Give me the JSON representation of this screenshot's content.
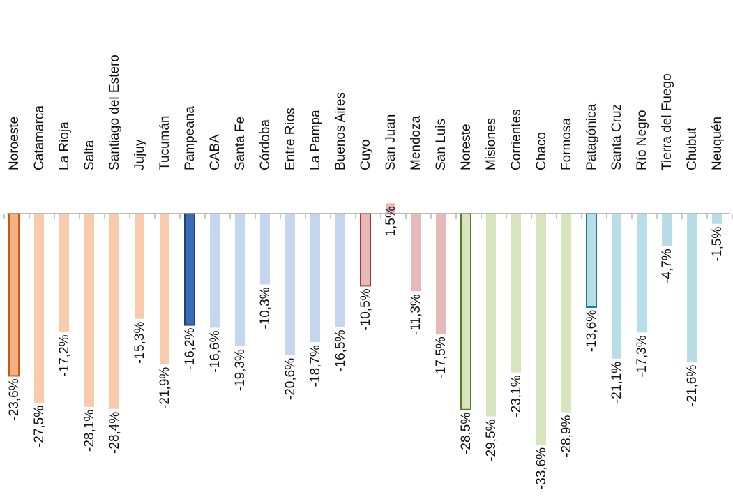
{
  "chart_data": {
    "type": "bar",
    "orientation": "vertical-rotated-labels",
    "title": "",
    "xlabel": "",
    "ylabel": "",
    "ylim": [
      -34,
      2
    ],
    "grid": false,
    "legend": "none",
    "categories": [
      "Noroeste",
      "Catamarca",
      "La Rioja",
      "Salta",
      "Santiago del Estero",
      "Jujuy",
      "Tucumán",
      "Pampeana",
      "CABA",
      "Santa Fe",
      "Córdoba",
      "Entre Ríos",
      "La Pampa",
      "Buenos Aires",
      "Cuyo",
      "San Juan",
      "Mendoza",
      "San Luis",
      "Noreste",
      "Misiones",
      "Corrientes",
      "Chaco",
      "Formosa",
      "Patagónica",
      "Santa Cruz",
      "Río Negro",
      "Tierra del Fuego",
      "Chubut",
      "Neuquén"
    ],
    "values": [
      -23.6,
      -27.5,
      -17.2,
      -28.1,
      -28.4,
      -15.3,
      -21.9,
      -16.2,
      -16.6,
      -19.3,
      -10.3,
      -20.6,
      -18.7,
      -16.5,
      -10.5,
      1.5,
      -11.3,
      -17.5,
      -28.5,
      -29.5,
      -23.1,
      -33.6,
      -28.9,
      -13.6,
      -21.1,
      -17.3,
      -4.7,
      -21.6,
      -1.5
    ],
    "value_labels": [
      "-23,6%",
      "-27,5%",
      "-17,2%",
      "-28,1%",
      "-28,4%",
      "-15,3%",
      "-21,9%",
      "-16,2%",
      "-16,6%",
      "-19,3%",
      "-10,3%",
      "-20,6%",
      "-18,7%",
      "-16,5%",
      "-10,5%",
      "1,5%",
      "-11,3%",
      "-17,5%",
      "-28,5%",
      "-29,5%",
      "-23,1%",
      "-33,6%",
      "-28,9%",
      "-13,6%",
      "-21,1%",
      "-17,3%",
      "-4,7%",
      "-21,6%",
      "-1,5%"
    ],
    "regions": [
      {
        "name": "Noroeste",
        "color": "#f4b183",
        "light": "#f8cbad"
      },
      {
        "name": "Pampeana",
        "color": "#2e5fa8",
        "light": "#c5d6f0"
      },
      {
        "name": "Cuyo",
        "color": "#c0504d",
        "light": "#e6b9b8"
      },
      {
        "name": "Noreste",
        "color": "#9bbb59",
        "light": "#d7e4bd"
      },
      {
        "name": "Patagónica",
        "color": "#4bacc6",
        "light": "#b7dee8"
      }
    ],
    "bar_region": [
      0,
      0,
      0,
      0,
      0,
      0,
      0,
      1,
      1,
      1,
      1,
      1,
      1,
      1,
      2,
      2,
      2,
      2,
      3,
      3,
      3,
      3,
      3,
      4,
      4,
      4,
      4,
      4,
      4
    ],
    "bar_is_total": [
      true,
      false,
      false,
      false,
      false,
      false,
      false,
      true,
      false,
      false,
      false,
      false,
      false,
      false,
      true,
      false,
      false,
      false,
      true,
      false,
      false,
      false,
      false,
      true,
      false,
      false,
      false,
      false,
      false
    ],
    "colors": {
      "noroeste_total_fill": "#f4b183",
      "noroeste_total_border": "#c55a11",
      "pampeana_total_fill": "#3a6bb6",
      "pampeana_total_border": "#1f3f77",
      "cuyo_total_fill": "#e6b9b8",
      "cuyo_total_border": "#a33733",
      "noreste_total_fill": "#d7e4bd",
      "noreste_total_border": "#5a7a2a",
      "patagonica_total_fill": "#b7dee8",
      "patagonica_total_border": "#1f7a94",
      "axis": "#a6a6a6",
      "background": "#ffffff"
    }
  }
}
